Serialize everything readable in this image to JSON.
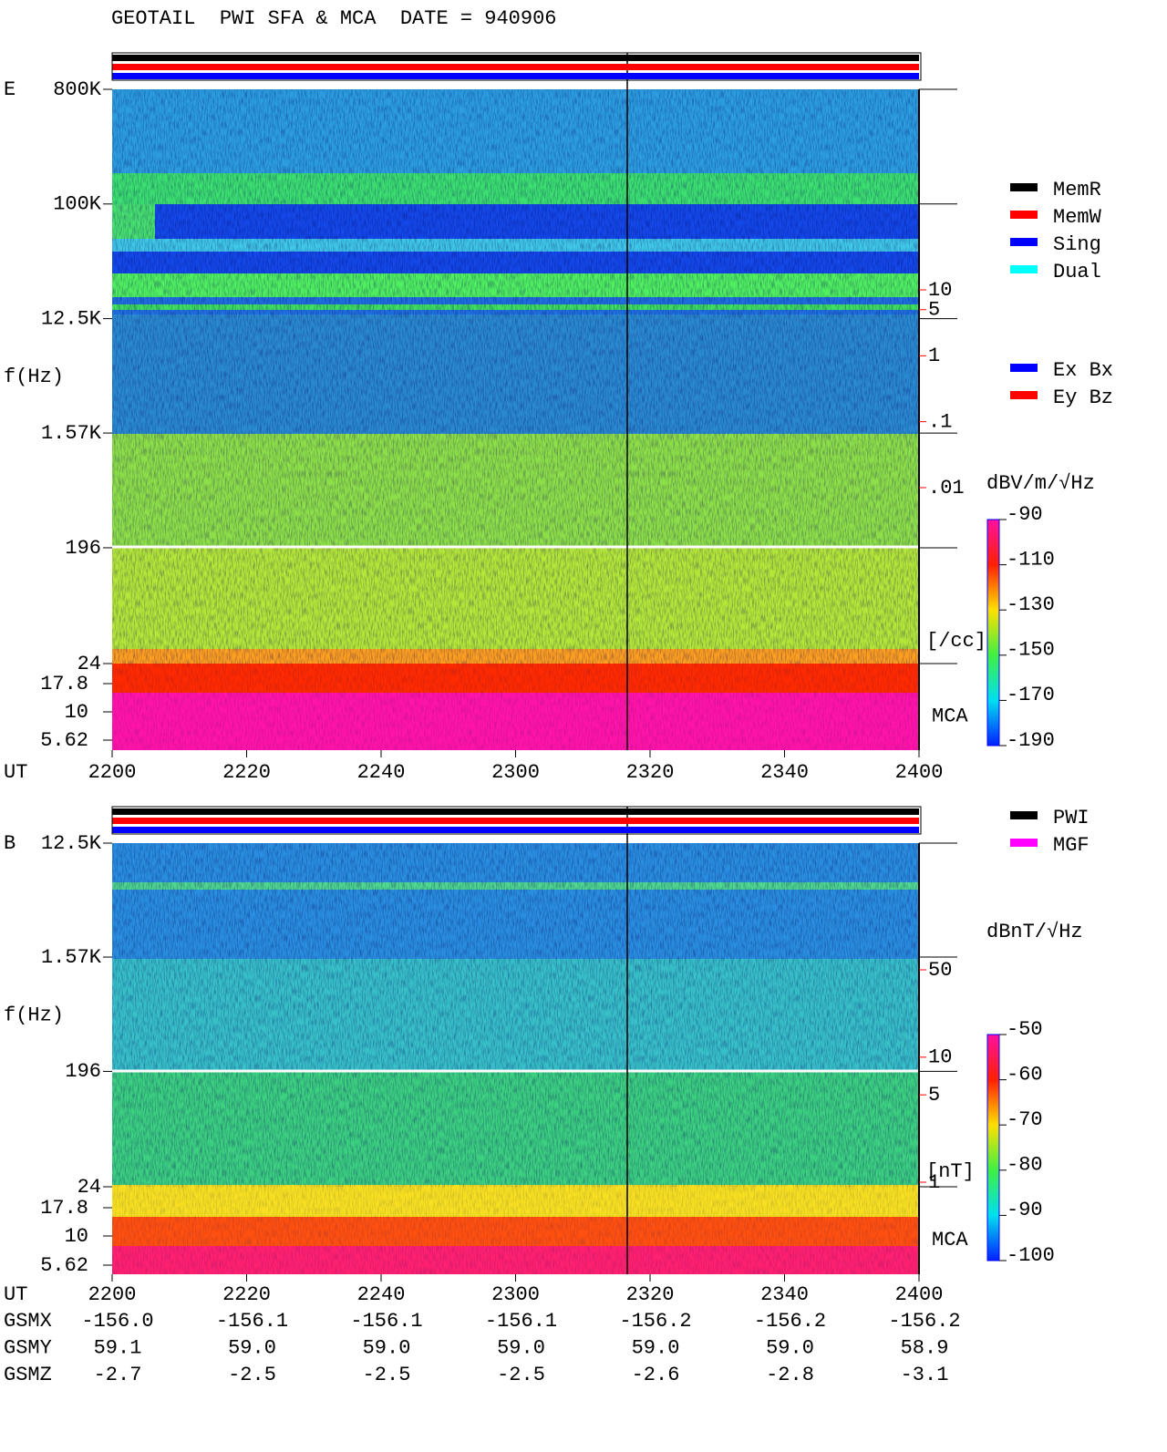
{
  "title": "GEOTAIL  PWI SFA & MCA  DATE = 940906",
  "chart_data": [
    {
      "type": "spectrogram",
      "panel_label": "E",
      "y_label": "f(Hz)",
      "x_label": "UT",
      "x_categories": [
        "2200",
        "2220",
        "2240",
        "2300",
        "2320",
        "2340",
        "2400"
      ],
      "log_y": true,
      "ylim": [
        24,
        800000
      ],
      "yticks": [
        {
          "value": 800000,
          "label": "800K"
        },
        {
          "value": 100000,
          "label": "100K"
        },
        {
          "value": 12500,
          "label": "12.5K"
        },
        {
          "value": 1570,
          "label": "1.57K"
        },
        196,
        24
      ],
      "mca_label": "MCA",
      "mca_ticks": [
        17.8,
        10,
        5.62
      ],
      "y2lim": [
        0.01,
        10
      ],
      "y2ticks": [
        10,
        5,
        1,
        {
          "value": 0.1,
          "label": ".1"
        },
        {
          "value": 0.01,
          "label": ".01"
        }
      ],
      "y2_unit": "[/cc]",
      "y2_color": "#ff0000",
      "colorbar": {
        "label": "dBV/m/√Hz",
        "lim": [
          -190,
          -90
        ],
        "ticks": [
          -90,
          -110,
          -130,
          -150,
          -170,
          -190
        ]
      },
      "legend": [
        {
          "name": "MemR",
          "color": "#000000"
        },
        {
          "name": "MemW",
          "color": "#ff0000"
        },
        {
          "name": "Sing",
          "color": "#0000ff"
        },
        {
          "name": "Dual",
          "color": "#00ffff"
        }
      ],
      "legend2": [
        {
          "name": "Ex Bx",
          "color": "#0000ff"
        },
        {
          "name": "Ey Bz",
          "color": "#ff0000"
        }
      ]
    },
    {
      "type": "spectrogram",
      "panel_label": "B",
      "y_label": "f(Hz)",
      "x_label": "UT",
      "x_categories": [
        "2200",
        "2220",
        "2240",
        "2300",
        "2320",
        "2340",
        "2400"
      ],
      "log_y": true,
      "ylim": [
        24,
        12500
      ],
      "yticks": [
        {
          "value": 12500,
          "label": "12.5K"
        },
        {
          "value": 1570,
          "label": "1.57K"
        },
        196,
        24
      ],
      "mca_label": "MCA",
      "mca_ticks": [
        17.8,
        10,
        5.62
      ],
      "y2lim": [
        1,
        50
      ],
      "y2ticks": [
        50,
        10,
        5,
        1
      ],
      "y2_unit": "[nT]",
      "y2_color": "#ff0000",
      "colorbar": {
        "label": "dBnT/√Hz",
        "lim": [
          -100,
          -50
        ],
        "ticks": [
          -50,
          -60,
          -70,
          -80,
          -90,
          -100
        ]
      },
      "legend": [
        {
          "name": "PWI",
          "color": "#000000"
        },
        {
          "name": "MGF",
          "color": "#ff00ff"
        }
      ]
    }
  ],
  "ephemeris": {
    "rows": [
      {
        "name": "GSMX",
        "values": [
          "-156.0",
          "-156.1",
          "-156.1",
          "-156.1",
          "-156.2",
          "-156.2",
          "-156.2"
        ]
      },
      {
        "name": "GSMY",
        "values": [
          "59.1",
          "59.0",
          "59.0",
          "59.0",
          "59.0",
          "59.0",
          "58.9"
        ]
      },
      {
        "name": "GSMZ",
        "values": [
          "-2.7",
          "-2.5",
          "-2.5",
          "-2.5",
          "-2.6",
          "-2.8",
          "-3.1"
        ]
      }
    ]
  }
}
